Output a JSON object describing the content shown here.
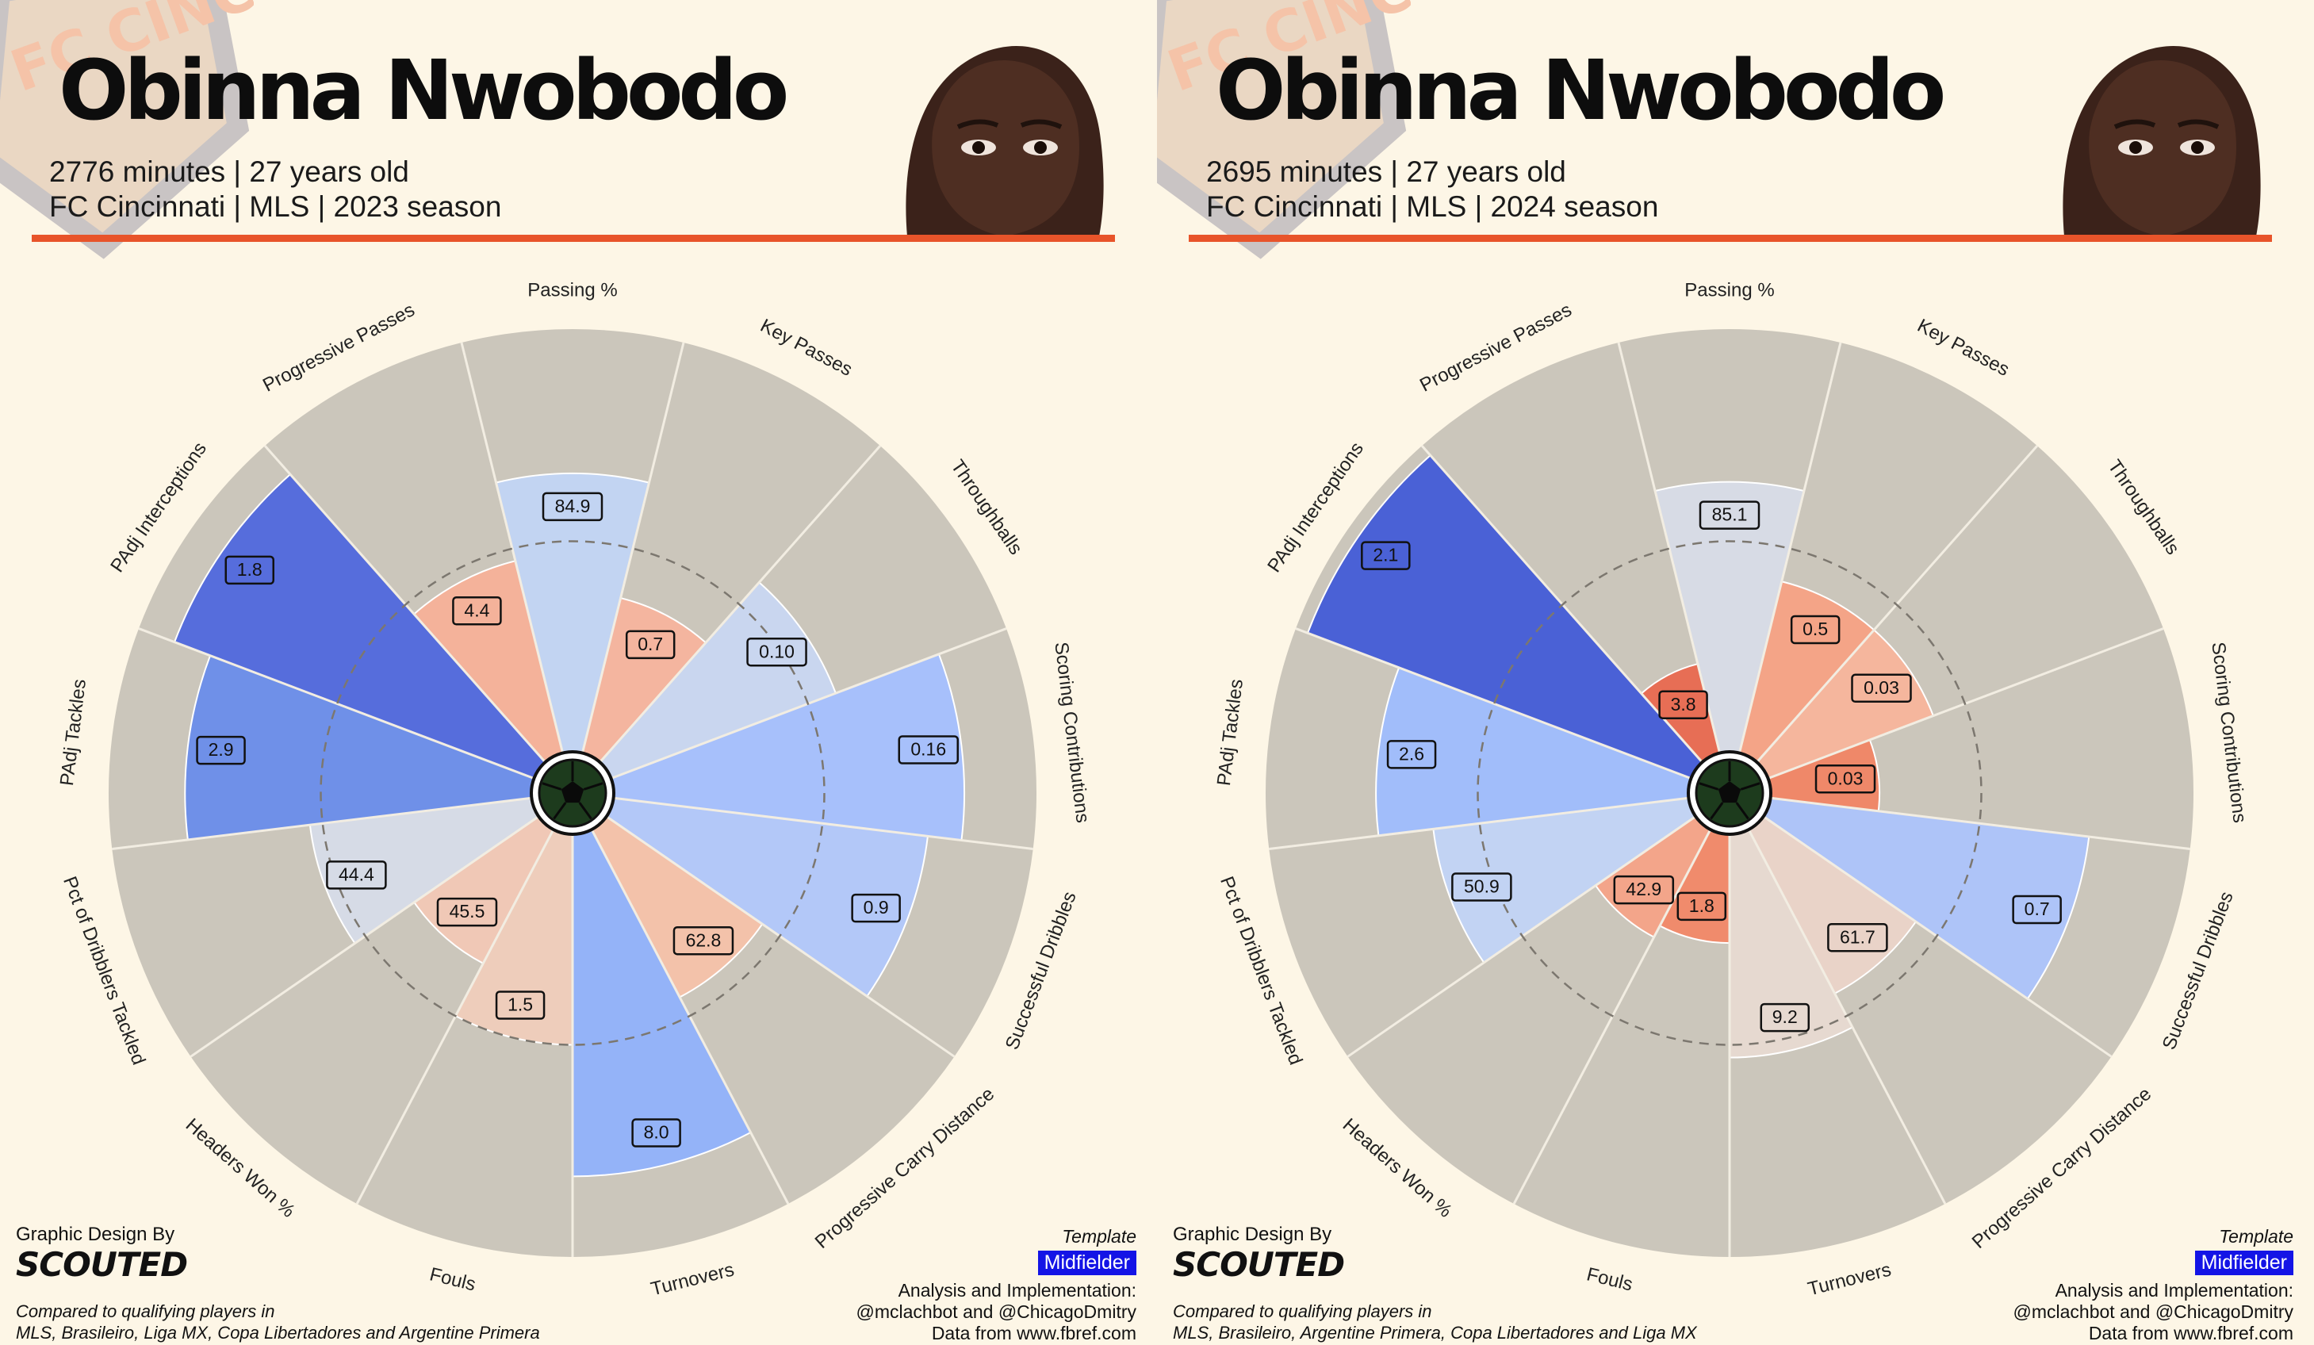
{
  "panels": [
    {
      "player_name": "Obinna Nwobodo",
      "subtitle1": "2776 minutes | 27 years old",
      "subtitle2": "FC Cincinnati | MLS | 2023 season",
      "logo_text": "FC CINCINNATI",
      "comparison_line1": "Compared to qualifying players in",
      "comparison_line2": "MLS, Brasileiro, Liga MX, Copa Libertadores and Argentine Primera"
    },
    {
      "player_name": "Obinna Nwobodo",
      "subtitle1": "2695 minutes | 27 years old",
      "subtitle2": "FC Cincinnati | MLS | 2024 season",
      "logo_text": "FC CINCINNATI",
      "comparison_line1": "Compared to qualifying players in",
      "comparison_line2": "MLS, Brasileiro, Argentine Primera, Copa Libertadores and Liga MX"
    }
  ],
  "footer": {
    "design_label": "Graphic Design By",
    "design_brand": "SCOUTED",
    "template_label": "Template",
    "template_value": "Midfielder",
    "analysis_label": "Analysis and Implementation:",
    "analysis_handles": "@mclachbot and @ChicagoDmitry",
    "data_source": "Data from www.fbref.com"
  },
  "colors": {
    "background": "#fdf6e6",
    "accent": "#e8542a",
    "wedge_background": "#cbc6bb",
    "badge": "#1414e6"
  },
  "chart_data": [
    {
      "type": "radar-pizza",
      "radial_axis_max_percentile": 100,
      "reference_circle_percentile": 50,
      "categories": [
        "Passing %",
        "Key Passes",
        "Throughballs",
        "Scoring Contributions",
        "Successful Dribbles",
        "Progressive Carry Distance",
        "Turnovers",
        "Fouls",
        "Headers Won %",
        "Pct of Dribblers Tackled",
        "PAdj Tackles",
        "PAdj Interceptions",
        "Progressive Passes"
      ],
      "values": [
        "84.9",
        "0.7",
        "0.10",
        "0.16",
        "0.9",
        "62.8",
        "8.0",
        "1.5",
        "45.5",
        "44.4",
        "2.9",
        "1.8",
        "4.4"
      ],
      "percentiles": [
        66,
        38,
        57,
        83,
        75,
        45,
        81,
        50,
        36,
        53,
        82,
        91,
        47
      ],
      "colors": [
        "#c2d4f2",
        "#f4b59f",
        "#c9d6ef",
        "#a7c0fb",
        "#b3c8f8",
        "#f3c2aa",
        "#94b3f8",
        "#eecdbb",
        "#f0c8b6",
        "#d6dbe6",
        "#6f90e8",
        "#566ddc",
        "#f4b29a"
      ]
    },
    {
      "type": "radar-pizza",
      "radial_axis_max_percentile": 100,
      "reference_circle_percentile": 50,
      "categories": [
        "Passing %",
        "Key Passes",
        "Throughballs",
        "Scoring Contributions",
        "Successful Dribbles",
        "Progressive Carry Distance",
        "Turnovers",
        "Fouls",
        "Headers Won %",
        "Pct of Dribblers Tackled",
        "PAdj Tackles",
        "PAdj Interceptions",
        "Progressive Passes"
      ],
      "values": [
        "85.1",
        "0.5",
        "0.03",
        "0.03",
        "0.7",
        "61.7",
        "9.2",
        "1.8",
        "42.9",
        "50.9",
        "2.6",
        "2.1",
        "3.8"
      ],
      "percentiles": [
        64,
        42,
        42,
        26,
        76,
        44,
        53,
        26,
        29,
        61,
        74,
        97,
        22
      ],
      "colors": [
        "#d7dbe5",
        "#f4a487",
        "#f5b69d",
        "#ef8869",
        "#aec4f8",
        "#e9d3c8",
        "#e6d9d0",
        "#f08b6c",
        "#f3a58a",
        "#c2d3f3",
        "#a1bdfa",
        "#4a61d6",
        "#e76e55"
      ]
    }
  ]
}
